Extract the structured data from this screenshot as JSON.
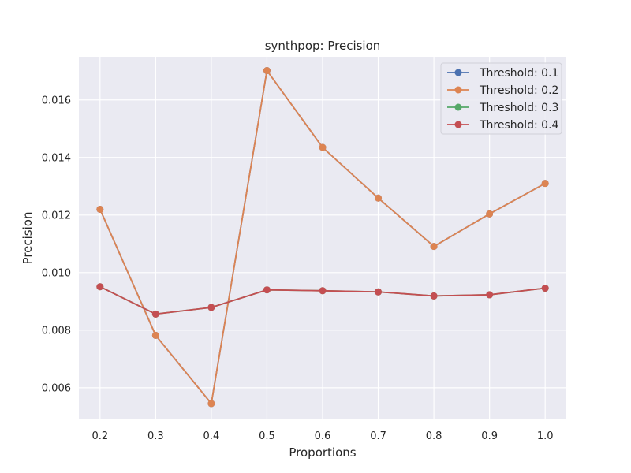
{
  "chart_data": {
    "type": "line",
    "title": "synthpop: Precision",
    "xlabel": "Proportions",
    "ylabel": "Precision",
    "x": [
      0.2,
      0.3,
      0.4,
      0.5,
      0.6,
      0.7,
      0.8,
      0.9,
      1.0
    ],
    "x_tick_labels": [
      "0.2",
      "0.3",
      "0.4",
      "0.5",
      "0.6",
      "0.7",
      "0.8",
      "0.9",
      "1.0"
    ],
    "y_ticks": [
      0.006,
      0.008,
      0.01,
      0.012,
      0.014,
      0.016
    ],
    "y_tick_labels": [
      "0.006",
      "0.008",
      "0.010",
      "0.012",
      "0.014",
      "0.016"
    ],
    "xlim": [
      0.162,
      1.038
    ],
    "ylim": [
      0.0049,
      0.0175
    ],
    "grid": true,
    "legend_position": "top-right",
    "series": [
      {
        "name": "Threshold: 0.1",
        "color": "#4c72b0",
        "values": [
          0.0122,
          0.00782,
          0.00545,
          0.01702,
          0.01435,
          0.01259,
          0.01091,
          0.01204,
          0.0131
        ]
      },
      {
        "name": "Threshold: 0.2",
        "color": "#dd8452",
        "values": [
          0.0122,
          0.00782,
          0.00545,
          0.01702,
          0.01435,
          0.01259,
          0.01091,
          0.01204,
          0.0131
        ]
      },
      {
        "name": "Threshold: 0.3",
        "color": "#55a868",
        "values": [
          0.00951,
          0.00856,
          0.00879,
          0.0094,
          0.00937,
          0.00933,
          0.00919,
          0.00923,
          0.00946
        ]
      },
      {
        "name": "Threshold: 0.4",
        "color": "#c44e52",
        "values": [
          0.00951,
          0.00856,
          0.00879,
          0.0094,
          0.00937,
          0.00933,
          0.00919,
          0.00923,
          0.00946
        ]
      }
    ]
  }
}
